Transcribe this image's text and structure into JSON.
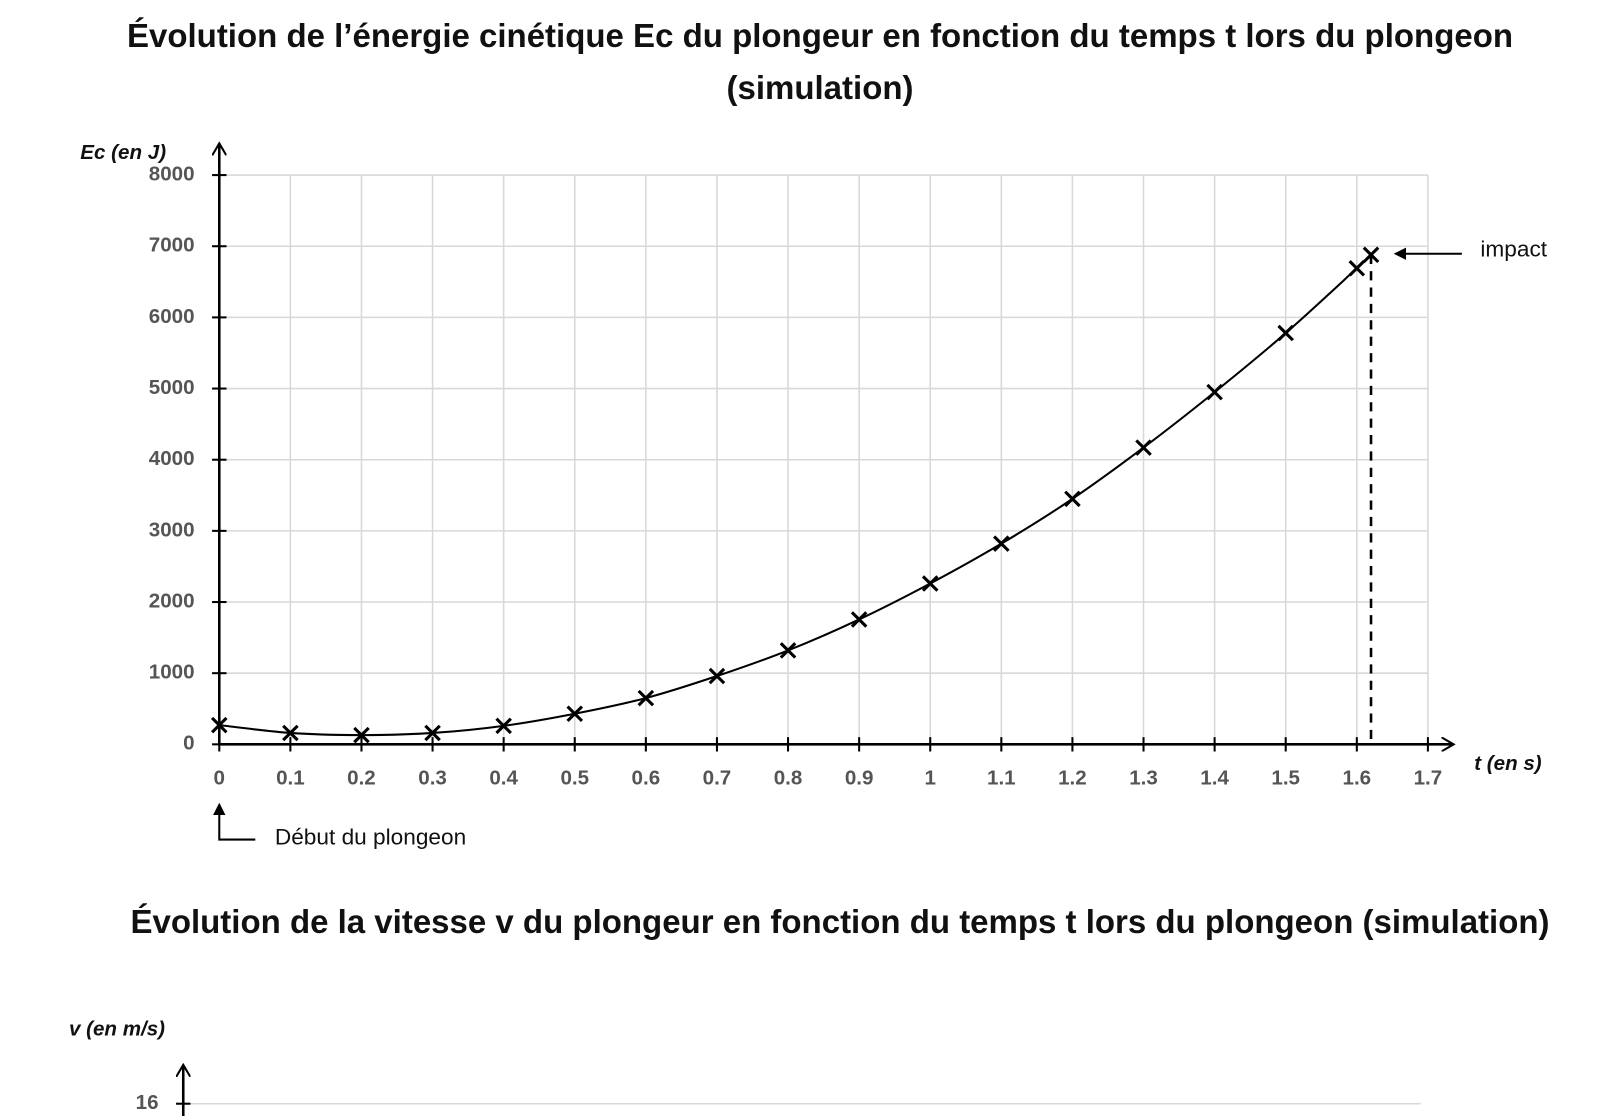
{
  "chart_data": [
    {
      "type": "line",
      "title": "Évolution de l’énergie cinétique Ec du plongeur en fonction du temps t lors du plongeon (simulation)",
      "y_label": "Ec (en J)",
      "x_label": "t (en s)",
      "x": [
        0,
        0.1,
        0.2,
        0.3,
        0.4,
        0.5,
        0.6,
        0.7,
        0.8,
        0.9,
        1,
        1.1,
        1.2,
        1.3,
        1.4,
        1.5,
        1.6,
        1.62
      ],
      "values": [
        270,
        160,
        130,
        160,
        260,
        430,
        650,
        960,
        1320,
        1755,
        2260,
        2820,
        3450,
        4170,
        4950,
        5780,
        6690,
        6880
      ],
      "color": "#000000",
      "marker": "x",
      "xlim": [
        0,
        1.7
      ],
      "ylim": [
        0,
        8000
      ],
      "xticks": [
        0,
        0.1,
        0.2,
        0.3,
        0.4,
        0.5,
        0.6,
        0.7,
        0.8,
        0.9,
        1,
        1.1,
        1.2,
        1.3,
        1.4,
        1.5,
        1.6,
        1.7
      ],
      "yticks": [
        0,
        1000,
        2000,
        3000,
        4000,
        5000,
        6000,
        7000,
        8000
      ],
      "grid": true,
      "annotations": [
        "impact",
        "Début du plongeon"
      ]
    },
    {
      "type": "line",
      "title": "Évolution de la vitesse v du plongeur en fonction du temps t lors du plongeon (simulation)",
      "y_label": "v (en m/s)",
      "yticks": [
        16
      ],
      "grid": true
    }
  ]
}
